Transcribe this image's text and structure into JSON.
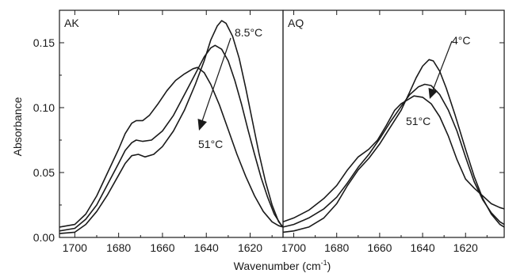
{
  "chart_data": [
    {
      "type": "line",
      "panel_label": "AK",
      "xlim": [
        1707,
        1605
      ],
      "ylim": [
        0,
        0.175
      ],
      "x_ticks": [
        1700,
        1680,
        1660,
        1640,
        1620
      ],
      "y_ticks": [
        {
          "value": 0.0,
          "label": "0.00"
        },
        {
          "value": 0.05,
          "label": "0.05"
        },
        {
          "value": 0.1,
          "label": "0.10"
        },
        {
          "value": 0.15,
          "label": "0.15"
        }
      ],
      "ylabel": "Absorbance",
      "annotations": {
        "top": "8.5°C",
        "bottom": "51°C"
      },
      "series": [
        {
          "points": [
            [
              1707,
              0.003
            ],
            [
              1700,
              0.004
            ],
            [
              1695,
              0.01
            ],
            [
              1690,
              0.02
            ],
            [
              1685,
              0.033
            ],
            [
              1680,
              0.048
            ],
            [
              1677,
              0.057
            ],
            [
              1674,
              0.063
            ],
            [
              1671,
              0.064
            ],
            [
              1668,
              0.062
            ],
            [
              1664,
              0.064
            ],
            [
              1660,
              0.07
            ],
            [
              1655,
              0.082
            ],
            [
              1650,
              0.098
            ],
            [
              1645,
              0.118
            ],
            [
              1641,
              0.136
            ],
            [
              1638,
              0.152
            ],
            [
              1635,
              0.163
            ],
            [
              1633,
              0.167
            ],
            [
              1631,
              0.165
            ],
            [
              1628,
              0.155
            ],
            [
              1625,
              0.138
            ],
            [
              1622,
              0.115
            ],
            [
              1619,
              0.09
            ],
            [
              1616,
              0.065
            ],
            [
              1613,
              0.043
            ],
            [
              1610,
              0.025
            ],
            [
              1607,
              0.012
            ],
            [
              1605,
              0.008
            ]
          ]
        },
        {
          "points": [
            [
              1707,
              0.005
            ],
            [
              1700,
              0.007
            ],
            [
              1695,
              0.014
            ],
            [
              1690,
              0.025
            ],
            [
              1685,
              0.041
            ],
            [
              1680,
              0.057
            ],
            [
              1677,
              0.067
            ],
            [
              1674,
              0.073
            ],
            [
              1672,
              0.075
            ],
            [
              1669,
              0.074
            ],
            [
              1665,
              0.075
            ],
            [
              1660,
              0.082
            ],
            [
              1655,
              0.094
            ],
            [
              1650,
              0.11
            ],
            [
              1645,
              0.126
            ],
            [
              1641,
              0.139
            ],
            [
              1638,
              0.146
            ],
            [
              1636,
              0.148
            ],
            [
              1633,
              0.145
            ],
            [
              1630,
              0.136
            ],
            [
              1627,
              0.121
            ],
            [
              1624,
              0.103
            ],
            [
              1621,
              0.083
            ],
            [
              1618,
              0.064
            ],
            [
              1615,
              0.046
            ],
            [
              1612,
              0.031
            ],
            [
              1609,
              0.018
            ],
            [
              1606,
              0.01
            ],
            [
              1605,
              0.008
            ]
          ]
        },
        {
          "points": [
            [
              1707,
              0.008
            ],
            [
              1700,
              0.01
            ],
            [
              1695,
              0.018
            ],
            [
              1690,
              0.032
            ],
            [
              1685,
              0.05
            ],
            [
              1680,
              0.068
            ],
            [
              1677,
              0.08
            ],
            [
              1674,
              0.088
            ],
            [
              1672,
              0.09
            ],
            [
              1669,
              0.09
            ],
            [
              1666,
              0.094
            ],
            [
              1662,
              0.103
            ],
            [
              1658,
              0.113
            ],
            [
              1654,
              0.121
            ],
            [
              1650,
              0.126
            ],
            [
              1646,
              0.13
            ],
            [
              1644,
              0.131
            ],
            [
              1641,
              0.127
            ],
            [
              1638,
              0.118
            ],
            [
              1634,
              0.102
            ],
            [
              1630,
              0.083
            ],
            [
              1626,
              0.064
            ],
            [
              1622,
              0.047
            ],
            [
              1618,
              0.032
            ],
            [
              1614,
              0.02
            ],
            [
              1610,
              0.012
            ],
            [
              1607,
              0.009
            ],
            [
              1605,
              0.008
            ]
          ]
        }
      ]
    },
    {
      "type": "line",
      "panel_label": "AQ",
      "xlim": [
        1705,
        1602
      ],
      "ylim": [
        0,
        0.175
      ],
      "x_ticks": [
        1700,
        1680,
        1660,
        1640,
        1620
      ],
      "annotations": {
        "top": "4°C",
        "bottom": "51°C"
      },
      "series": [
        {
          "points": [
            [
              1705,
              0.004
            ],
            [
              1700,
              0.005
            ],
            [
              1693,
              0.008
            ],
            [
              1686,
              0.015
            ],
            [
              1680,
              0.026
            ],
            [
              1675,
              0.04
            ],
            [
              1670,
              0.052
            ],
            [
              1665,
              0.061
            ],
            [
              1660,
              0.072
            ],
            [
              1655,
              0.085
            ],
            [
              1650,
              0.098
            ],
            [
              1646,
              0.112
            ],
            [
              1643,
              0.123
            ],
            [
              1640,
              0.132
            ],
            [
              1637,
              0.137
            ],
            [
              1635,
              0.136
            ],
            [
              1632,
              0.128
            ],
            [
              1629,
              0.115
            ],
            [
              1625,
              0.095
            ],
            [
              1620,
              0.068
            ],
            [
              1616,
              0.047
            ],
            [
              1612,
              0.03
            ],
            [
              1608,
              0.018
            ],
            [
              1604,
              0.01
            ],
            [
              1602,
              0.008
            ]
          ]
        },
        {
          "points": [
            [
              1705,
              0.008
            ],
            [
              1700,
              0.01
            ],
            [
              1693,
              0.015
            ],
            [
              1686,
              0.022
            ],
            [
              1680,
              0.031
            ],
            [
              1675,
              0.042
            ],
            [
              1670,
              0.054
            ],
            [
              1665,
              0.064
            ],
            [
              1660,
              0.076
            ],
            [
              1655,
              0.089
            ],
            [
              1650,
              0.101
            ],
            [
              1646,
              0.11
            ],
            [
              1642,
              0.116
            ],
            [
              1639,
              0.118
            ],
            [
              1636,
              0.117
            ],
            [
              1632,
              0.11
            ],
            [
              1628,
              0.098
            ],
            [
              1624,
              0.082
            ],
            [
              1620,
              0.062
            ],
            [
              1616,
              0.043
            ],
            [
              1612,
              0.029
            ],
            [
              1608,
              0.019
            ],
            [
              1604,
              0.012
            ],
            [
              1602,
              0.01
            ]
          ]
        },
        {
          "points": [
            [
              1705,
              0.012
            ],
            [
              1700,
              0.015
            ],
            [
              1693,
              0.021
            ],
            [
              1686,
              0.03
            ],
            [
              1680,
              0.04
            ],
            [
              1675,
              0.052
            ],
            [
              1670,
              0.062
            ],
            [
              1665,
              0.068
            ],
            [
              1661,
              0.075
            ],
            [
              1657,
              0.086
            ],
            [
              1653,
              0.098
            ],
            [
              1650,
              0.103
            ],
            [
              1647,
              0.106
            ],
            [
              1644,
              0.109
            ],
            [
              1640,
              0.108
            ],
            [
              1636,
              0.103
            ],
            [
              1632,
              0.093
            ],
            [
              1628,
              0.078
            ],
            [
              1624,
              0.06
            ],
            [
              1620,
              0.045
            ],
            [
              1616,
              0.038
            ],
            [
              1612,
              0.032
            ],
            [
              1608,
              0.026
            ],
            [
              1604,
              0.023
            ],
            [
              1602,
              0.022
            ]
          ]
        }
      ]
    }
  ],
  "xlabel": "Wavenumber (cm",
  "xlabel_superscript": "-1",
  "xlabel_close": ")"
}
